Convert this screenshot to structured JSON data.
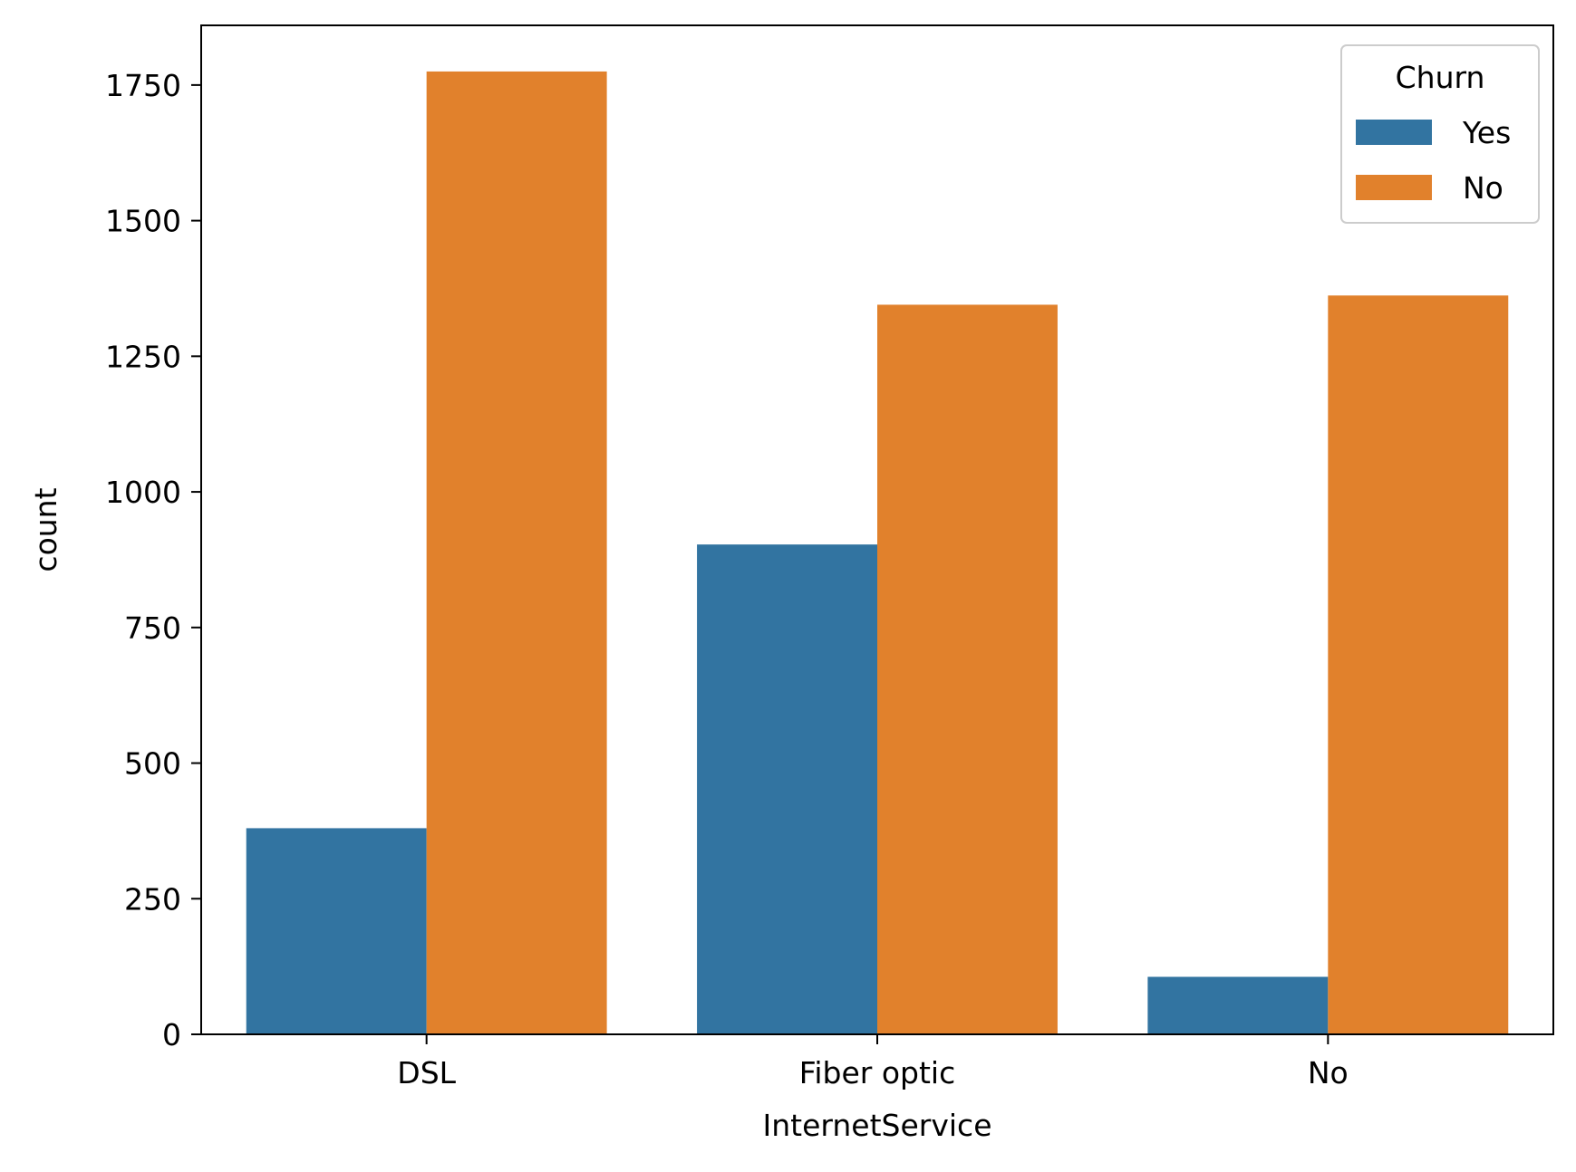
{
  "chart_data": {
    "type": "bar",
    "xlabel": "InternetService",
    "ylabel": "count",
    "categories": [
      "DSL",
      "Fiber optic",
      "No"
    ],
    "series": [
      {
        "name": "Yes",
        "color": "#3274a1",
        "values": [
          380,
          903,
          106
        ]
      },
      {
        "name": "No",
        "color": "#e1812c",
        "values": [
          1775,
          1345,
          1362
        ]
      }
    ],
    "ylim": [
      0,
      1860
    ],
    "yticks": [
      0,
      250,
      500,
      750,
      1000,
      1250,
      1500,
      1750
    ],
    "ytick_labels": [
      "0",
      "250",
      "500",
      "750",
      "1000",
      "1250",
      "1500",
      "1750"
    ],
    "legend": {
      "title": "Churn",
      "position": "top-right"
    },
    "grid": false
  }
}
